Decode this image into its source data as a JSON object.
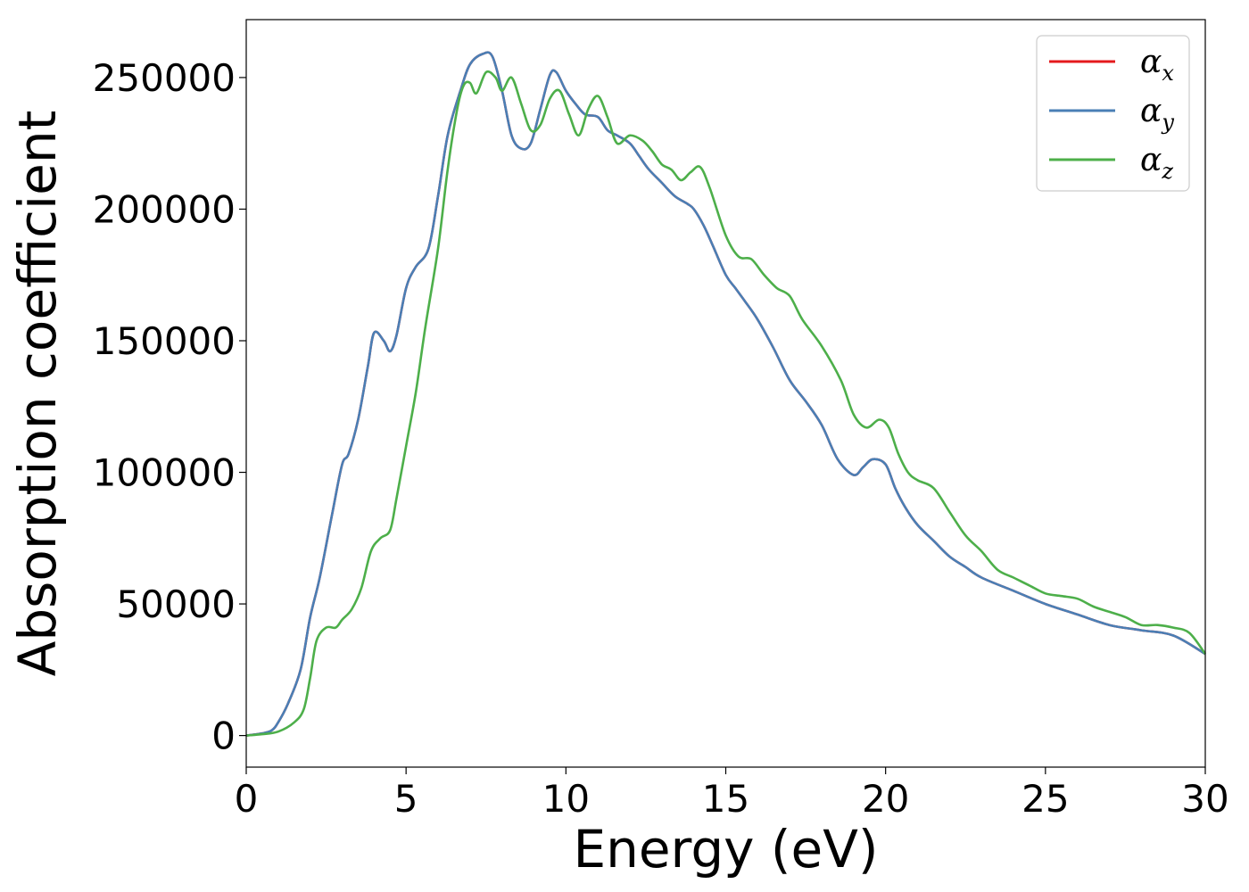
{
  "chart_data": {
    "type": "line",
    "xlabel": "Energy (eV)",
    "ylabel": "Absorption coefficient",
    "xlim": [
      0,
      30
    ],
    "ylim": [
      -12000,
      272000
    ],
    "xticks": [
      0,
      5,
      10,
      15,
      20,
      25,
      30
    ],
    "xtick_labels": [
      "0",
      "5",
      "10",
      "15",
      "20",
      "25",
      "30"
    ],
    "yticks": [
      0,
      50000,
      100000,
      150000,
      200000,
      250000
    ],
    "ytick_labels": [
      "0",
      "50000",
      "100000",
      "150000",
      "200000",
      "250000"
    ],
    "grid": false,
    "legend_position": "top-right",
    "series": [
      {
        "name": "α",
        "subscript": "x",
        "color": "#e41a1c",
        "x": [
          0,
          0.5,
          0.8,
          1.0,
          1.3,
          1.7,
          2.0,
          2.3,
          2.7,
          3.0,
          3.2,
          3.5,
          3.8,
          4.0,
          4.3,
          4.5,
          4.7,
          5.0,
          5.3,
          5.7,
          6.0,
          6.3,
          6.7,
          7.0,
          7.4,
          7.7,
          8.0,
          8.3,
          8.6,
          8.9,
          9.2,
          9.5,
          9.7,
          10.0,
          10.3,
          10.6,
          11.0,
          11.3,
          11.6,
          12.0,
          12.3,
          12.6,
          13.0,
          13.4,
          13.8,
          14.0,
          14.3,
          14.6,
          15.0,
          15.3,
          15.6,
          16.0,
          16.5,
          17.0,
          17.5,
          18.0,
          18.5,
          19.0,
          19.3,
          19.6,
          20.0,
          20.3,
          20.6,
          21.0,
          21.5,
          22.0,
          22.5,
          23.0,
          24.0,
          25.0,
          26.0,
          27.0,
          28.0,
          29.0,
          30.0
        ],
        "values": [
          0,
          800,
          2000,
          5000,
          12000,
          25000,
          45000,
          60000,
          85000,
          103000,
          107000,
          120000,
          140000,
          153000,
          150000,
          146000,
          152000,
          170000,
          178000,
          185000,
          205000,
          228000,
          245000,
          255000,
          259000,
          258000,
          245000,
          228000,
          223000,
          225000,
          238000,
          251000,
          252000,
          245000,
          240000,
          236000,
          235000,
          230000,
          228000,
          225000,
          220000,
          215000,
          210000,
          205000,
          202000,
          200000,
          194000,
          186000,
          175000,
          170000,
          165000,
          158000,
          147000,
          135000,
          127000,
          118000,
          105000,
          99000,
          102000,
          105000,
          103000,
          94000,
          87000,
          80000,
          74000,
          68000,
          64000,
          60000,
          55000,
          50000,
          46000,
          42000,
          40000,
          38000,
          31000
        ]
      },
      {
        "name": "α",
        "subscript": "y",
        "color": "#4a7fb5",
        "x": [
          0,
          0.5,
          0.8,
          1.0,
          1.3,
          1.7,
          2.0,
          2.3,
          2.7,
          3.0,
          3.2,
          3.5,
          3.8,
          4.0,
          4.3,
          4.5,
          4.7,
          5.0,
          5.3,
          5.7,
          6.0,
          6.3,
          6.7,
          7.0,
          7.4,
          7.7,
          8.0,
          8.3,
          8.6,
          8.9,
          9.2,
          9.5,
          9.7,
          10.0,
          10.3,
          10.6,
          11.0,
          11.3,
          11.6,
          12.0,
          12.3,
          12.6,
          13.0,
          13.4,
          13.8,
          14.0,
          14.3,
          14.6,
          15.0,
          15.3,
          15.6,
          16.0,
          16.5,
          17.0,
          17.5,
          18.0,
          18.5,
          19.0,
          19.3,
          19.6,
          20.0,
          20.3,
          20.6,
          21.0,
          21.5,
          22.0,
          22.5,
          23.0,
          24.0,
          25.0,
          26.0,
          27.0,
          28.0,
          29.0,
          30.0
        ],
        "values": [
          0,
          800,
          2000,
          5000,
          12000,
          25000,
          45000,
          60000,
          85000,
          103000,
          107000,
          120000,
          140000,
          153000,
          150000,
          146000,
          152000,
          170000,
          178000,
          185000,
          205000,
          228000,
          245000,
          255000,
          259000,
          258000,
          245000,
          228000,
          223000,
          225000,
          238000,
          251000,
          252000,
          245000,
          240000,
          236000,
          235000,
          230000,
          228000,
          225000,
          220000,
          215000,
          210000,
          205000,
          202000,
          200000,
          194000,
          186000,
          175000,
          170000,
          165000,
          158000,
          147000,
          135000,
          127000,
          118000,
          105000,
          99000,
          102000,
          105000,
          103000,
          94000,
          87000,
          80000,
          74000,
          68000,
          64000,
          60000,
          55000,
          50000,
          46000,
          42000,
          40000,
          38000,
          31000
        ]
      },
      {
        "name": "α",
        "subscript": "z",
        "color": "#4daf4a",
        "x": [
          0,
          0.5,
          1.0,
          1.5,
          1.8,
          2.0,
          2.2,
          2.5,
          2.8,
          3.0,
          3.3,
          3.6,
          3.9,
          4.2,
          4.5,
          4.7,
          5.0,
          5.3,
          5.6,
          6.0,
          6.3,
          6.6,
          6.8,
          7.0,
          7.2,
          7.5,
          7.8,
          8.0,
          8.3,
          8.6,
          8.9,
          9.2,
          9.5,
          9.8,
          10.1,
          10.4,
          10.7,
          11.0,
          11.3,
          11.6,
          12.0,
          12.4,
          12.7,
          13.0,
          13.3,
          13.6,
          13.9,
          14.2,
          14.5,
          15.0,
          15.4,
          15.8,
          16.2,
          16.6,
          17.0,
          17.4,
          18.0,
          18.6,
          19.0,
          19.4,
          19.8,
          20.1,
          20.4,
          20.7,
          21.0,
          21.5,
          22.0,
          22.5,
          23.0,
          23.5,
          24.0,
          24.5,
          25.0,
          25.5,
          26.0,
          26.5,
          27.0,
          27.5,
          28.0,
          28.5,
          29.0,
          29.5,
          30.0
        ],
        "values": [
          0,
          500,
          1500,
          5000,
          10000,
          22000,
          36000,
          41000,
          41000,
          44000,
          48000,
          56000,
          70000,
          75000,
          78000,
          90000,
          110000,
          130000,
          155000,
          185000,
          215000,
          238000,
          247000,
          248000,
          244000,
          252000,
          250000,
          245000,
          250000,
          240000,
          230000,
          232000,
          242000,
          245000,
          236000,
          228000,
          238000,
          243000,
          235000,
          225000,
          228000,
          226000,
          222000,
          217000,
          215000,
          211000,
          214000,
          216000,
          208000,
          190000,
          182000,
          181000,
          175000,
          170000,
          167000,
          158000,
          148000,
          135000,
          122000,
          117000,
          120000,
          117000,
          107000,
          100000,
          97000,
          94000,
          85000,
          76000,
          70000,
          63000,
          60000,
          57000,
          54000,
          53000,
          52000,
          49000,
          47000,
          45000,
          42000,
          42000,
          41000,
          39000,
          31000
        ]
      }
    ]
  }
}
